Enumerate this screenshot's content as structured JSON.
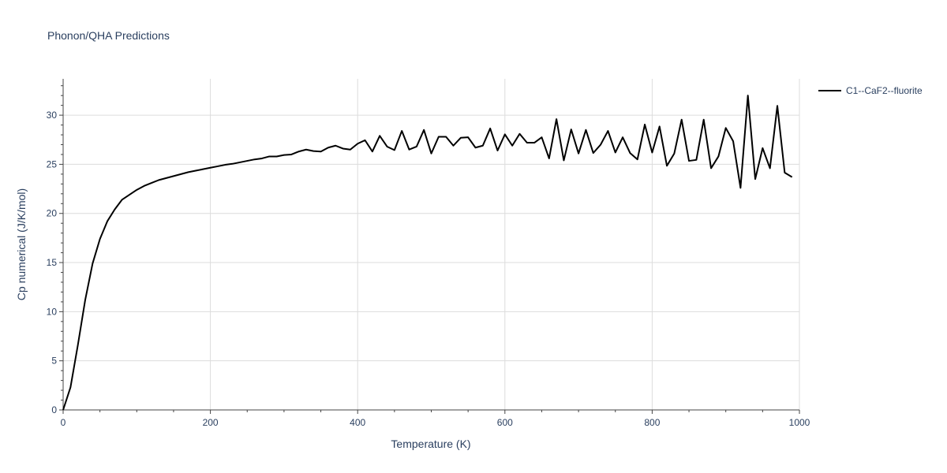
{
  "chart_data": {
    "type": "line",
    "title": "Phonon/QHA Predictions",
    "xlabel": "Temperature (K)",
    "ylabel": "Cp numerical (J/K/mol)",
    "xlim": [
      0,
      1000
    ],
    "ylim": [
      0,
      33.7
    ],
    "x_ticks": [
      0,
      200,
      400,
      600,
      800,
      1000
    ],
    "y_ticks": [
      0,
      5,
      10,
      15,
      20,
      25,
      30
    ],
    "grid": true,
    "legend_position": "top-right",
    "series": [
      {
        "name": "C1--CaF2--fluorite",
        "color": "#000000",
        "x": [
          0,
          10,
          20,
          30,
          40,
          50,
          60,
          70,
          80,
          90,
          100,
          110,
          120,
          130,
          140,
          150,
          160,
          170,
          180,
          190,
          200,
          210,
          220,
          230,
          240,
          250,
          260,
          270,
          280,
          290,
          300,
          310,
          320,
          330,
          340,
          350,
          360,
          370,
          380,
          390,
          400,
          410,
          420,
          430,
          440,
          450,
          460,
          470,
          480,
          490,
          500,
          510,
          520,
          530,
          540,
          550,
          560,
          570,
          580,
          590,
          600,
          610,
          620,
          630,
          640,
          650,
          660,
          670,
          680,
          690,
          700,
          710,
          720,
          730,
          740,
          750,
          760,
          770,
          780,
          790,
          800,
          810,
          820,
          830,
          840,
          850,
          860,
          870,
          880,
          890,
          900,
          910,
          920,
          930,
          940,
          950,
          960,
          970,
          980,
          990
        ],
        "y": [
          0,
          2.3,
          6.6,
          11.2,
          14.9,
          17.4,
          19.2,
          20.4,
          21.4,
          21.9,
          22.4,
          22.8,
          23.1,
          23.4,
          23.6,
          23.8,
          24.0,
          24.2,
          24.35,
          24.5,
          24.65,
          24.8,
          24.95,
          25.05,
          25.2,
          25.35,
          25.5,
          25.6,
          25.8,
          25.8,
          25.95,
          26.0,
          26.3,
          26.5,
          26.35,
          26.3,
          26.7,
          26.9,
          26.6,
          26.5,
          27.1,
          27.45,
          26.3,
          27.9,
          26.8,
          26.45,
          28.4,
          26.5,
          26.8,
          28.5,
          26.1,
          27.8,
          27.8,
          26.9,
          27.7,
          27.75,
          26.7,
          26.9,
          28.65,
          26.4,
          28.05,
          26.9,
          28.1,
          27.2,
          27.2,
          27.75,
          25.6,
          29.6,
          25.4,
          28.55,
          26.1,
          28.5,
          26.15,
          27.0,
          28.4,
          26.2,
          27.75,
          26.15,
          25.5,
          29.05,
          26.2,
          28.85,
          24.85,
          26.1,
          29.55,
          25.35,
          25.45,
          29.55,
          24.6,
          25.8,
          28.7,
          27.35,
          22.6,
          32.0,
          23.5,
          26.65,
          24.6,
          30.95,
          24.15,
          23.7
        ]
      }
    ]
  }
}
